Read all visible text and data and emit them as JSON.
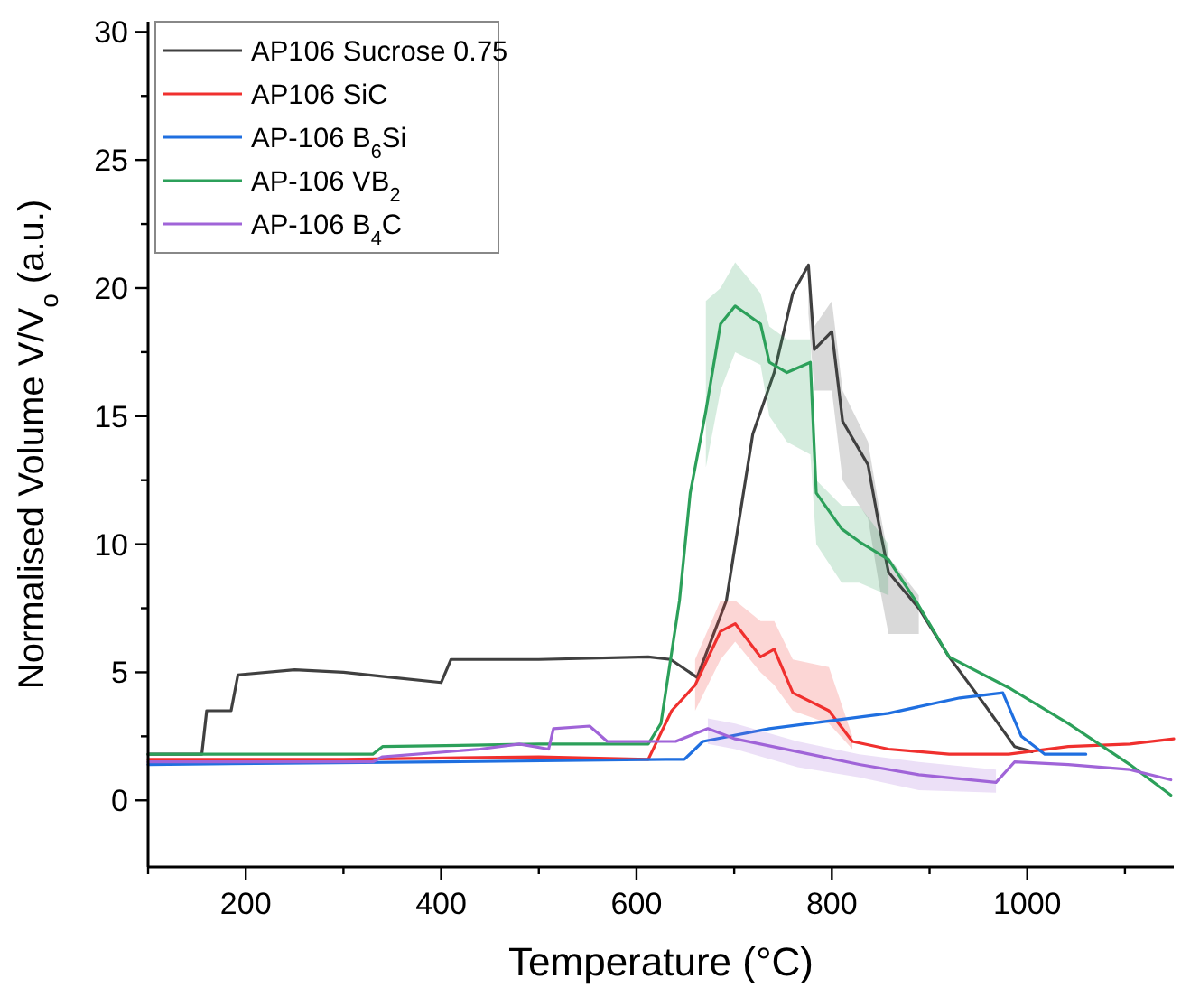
{
  "chart_data": {
    "type": "line",
    "xlabel": "Temperature (°C)",
    "ylabel": "Normalised Volume V/V$_{o}$ (a.u.)",
    "xlim": [
      100,
      1150
    ],
    "ylim": [
      -2.6,
      30.4
    ],
    "xticks": [
      {
        "value": 100,
        "label": null
      },
      200,
      {
        "value": 300,
        "label": null
      },
      400,
      {
        "value": 500,
        "label": null
      },
      600,
      {
        "value": 700,
        "label": null
      },
      800,
      {
        "value": 900,
        "label": null
      },
      1000,
      {
        "value": 1100,
        "label": null
      }
    ],
    "yticks": [
      0,
      {
        "value": 2.5,
        "label": null
      },
      5,
      {
        "value": 7.5,
        "label": null
      },
      10,
      {
        "value": 12.5,
        "label": null
      },
      15,
      {
        "value": 17.5,
        "label": null
      },
      20,
      {
        "value": 22.5,
        "label": null
      },
      25,
      {
        "value": 27.5,
        "label": null
      },
      30
    ],
    "legend": "top left",
    "grid": false,
    "series": [
      {
        "name": "AP106 Sucrose 0.75",
        "color": "#404040",
        "x": [
          100,
          155,
          160,
          185,
          192,
          250,
          300,
          350,
          400,
          410,
          500,
          612,
          635,
          662,
          692,
          719,
          741,
          760,
          776,
          782,
          800,
          811,
          837,
          848,
          858,
          889,
          920,
          957,
          987,
          1005
        ],
        "values": [
          1.8,
          1.8,
          3.5,
          3.5,
          4.9,
          5.1,
          5.0,
          4.8,
          4.6,
          5.5,
          5.5,
          5.6,
          5.5,
          4.8,
          7.8,
          14.3,
          16.7,
          19.8,
          20.9,
          17.6,
          18.3,
          14.8,
          13.1,
          10.8,
          8.9,
          7.5,
          5.6,
          3.7,
          2.1,
          1.9
        ],
        "lower": [
          null,
          null,
          null,
          null,
          null,
          null,
          null,
          null,
          null,
          null,
          null,
          null,
          null,
          null,
          null,
          null,
          null,
          null,
          19,
          16,
          16,
          12.5,
          11,
          8.5,
          6.5,
          6.5,
          null,
          null,
          null,
          null
        ],
        "upper": [
          null,
          null,
          null,
          null,
          null,
          null,
          null,
          null,
          null,
          null,
          null,
          null,
          null,
          null,
          null,
          null,
          null,
          null,
          21,
          18.5,
          19.5,
          16,
          14,
          11.5,
          9.5,
          8,
          null,
          null,
          null,
          null
        ]
      },
      {
        "name": "AP106 SiC",
        "color": "#f0302e",
        "x": [
          100,
          300,
          500,
          612,
          636,
          660,
          686,
          701,
          727,
          741,
          760,
          797,
          821,
          858,
          920,
          981,
          1042,
          1105,
          1150
        ],
        "values": [
          1.6,
          1.6,
          1.7,
          1.6,
          3.5,
          4.5,
          6.6,
          6.9,
          5.6,
          5.9,
          4.2,
          3.5,
          2.3,
          2.0,
          1.8,
          1.8,
          2.1,
          2.2,
          2.4
        ],
        "lower": [
          null,
          null,
          null,
          null,
          null,
          3.5,
          5.5,
          6.2,
          5,
          4.5,
          3.5,
          3,
          2,
          null,
          null,
          null,
          null,
          null,
          null
        ],
        "upper": [
          null,
          null,
          null,
          null,
          null,
          5.5,
          7.8,
          7.8,
          7,
          7,
          5.5,
          5.2,
          2.5,
          null,
          null,
          null,
          null,
          null,
          null
        ]
      },
      {
        "name": "AP-106 B$_{6}$Si",
        "color": "#1f6fe0",
        "x": [
          100,
          400,
          630,
          649,
          668,
          736,
          858,
          931,
          975,
          994,
          1018,
          1060
        ],
        "values": [
          1.4,
          1.5,
          1.6,
          1.6,
          2.3,
          2.8,
          3.4,
          4.0,
          4.2,
          2.5,
          1.8,
          1.8
        ]
      },
      {
        "name": "AP-106 VB$_{2}$",
        "color": "#2ca05a",
        "x": [
          100,
          330,
          340,
          500,
          612,
          625,
          644,
          655,
          671,
          686,
          701,
          727,
          736,
          754,
          778,
          784,
          810,
          828,
          858,
          889,
          920,
          981,
          1042,
          1105,
          1147
        ],
        "values": [
          1.8,
          1.8,
          2.1,
          2.2,
          2.2,
          3.0,
          7.8,
          12,
          15.2,
          18.6,
          19.3,
          18.6,
          17.1,
          16.7,
          17.1,
          12,
          10.6,
          10.1,
          9.4,
          7.6,
          5.6,
          4.4,
          3.0,
          1.4,
          0.2
        ],
        "lower": [
          null,
          null,
          null,
          null,
          null,
          null,
          null,
          null,
          13,
          16,
          17.5,
          17,
          15,
          14,
          13.5,
          10,
          8.5,
          8.5,
          8,
          null,
          null,
          null,
          null,
          null,
          null
        ],
        "upper": [
          null,
          null,
          null,
          null,
          null,
          null,
          null,
          null,
          19.5,
          20,
          21,
          19.8,
          18.5,
          18,
          18,
          12.5,
          11.5,
          11.5,
          10,
          null,
          null,
          null,
          null,
          null,
          null
        ]
      },
      {
        "name": "AP-106 B$_{4}$C",
        "color": "#a064d8",
        "x": [
          100,
          330,
          340,
          440,
          480,
          510,
          515,
          552,
          570,
          640,
          673,
          701,
          765,
          828,
          889,
          968,
          987,
          1042,
          1105,
          1147
        ],
        "values": [
          1.5,
          1.5,
          1.7,
          2.0,
          2.2,
          2.0,
          2.8,
          2.9,
          2.3,
          2.3,
          2.8,
          2.4,
          1.9,
          1.4,
          1.0,
          0.7,
          1.5,
          1.4,
          1.2,
          0.8
        ],
        "lower": [
          null,
          null,
          null,
          null,
          null,
          null,
          null,
          null,
          null,
          null,
          2.2,
          2,
          1.3,
          0.9,
          0.4,
          0.3,
          null,
          null,
          null,
          null
        ],
        "upper": [
          null,
          null,
          null,
          null,
          null,
          null,
          null,
          null,
          null,
          null,
          3.2,
          3,
          2.3,
          1.8,
          1.5,
          1.2,
          null,
          null,
          null,
          null
        ]
      }
    ]
  }
}
